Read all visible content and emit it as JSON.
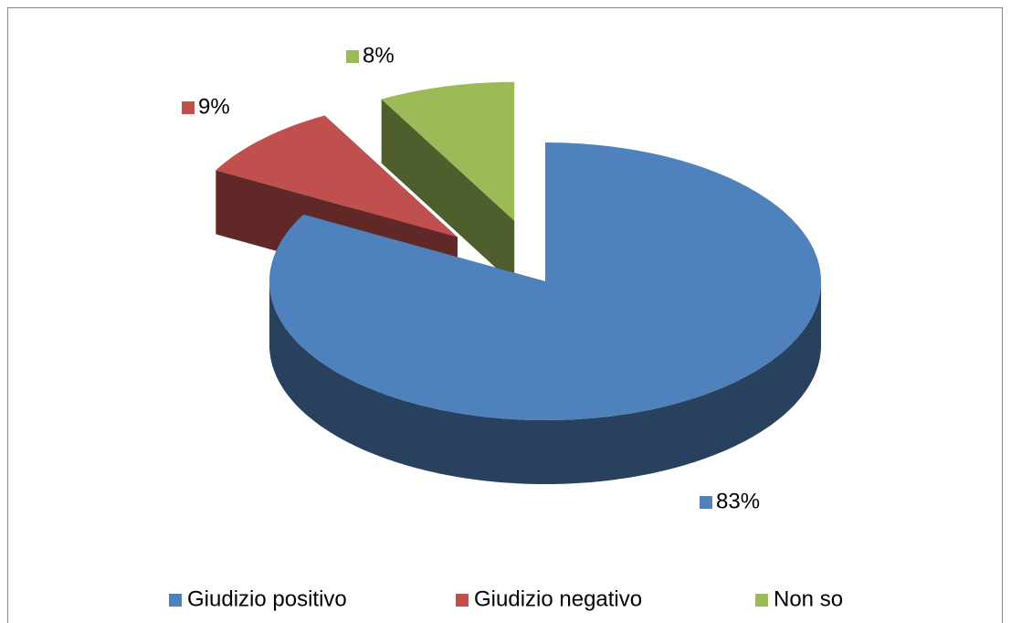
{
  "chart_data": {
    "type": "pie3d",
    "categories": [
      "Giudizio positivo",
      "Giudizio negativo",
      "Non so"
    ],
    "values": [
      83,
      9,
      8
    ],
    "value_labels": [
      "83%",
      "9%",
      "8%"
    ],
    "colors": [
      "#4f81bd",
      "#c0504d",
      "#9bbb59"
    ],
    "legend": "bottom"
  }
}
